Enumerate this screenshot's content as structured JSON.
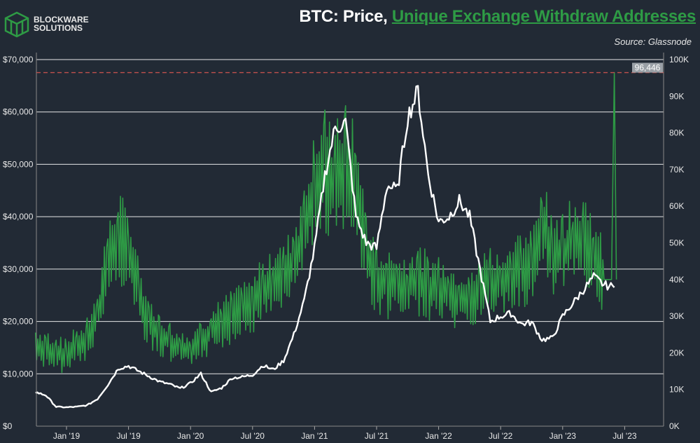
{
  "brand": {
    "line1": "BLOCKWARE",
    "line2": "SOLUTIONS"
  },
  "title_part1": "BTC: Price, ",
  "title_part2": "Unique Exchange Withdraw Addresses",
  "source": "Source: Glassnode",
  "colors": {
    "background": "#222a35",
    "price": "#ffffff",
    "addresses": "#2e9b45",
    "grid": "#e6e6e6",
    "refline": "#c0504d",
    "label_bg": "#9aa0a6"
  },
  "chart_data": {
    "type": "line",
    "title": "BTC: Price, Unique Exchange Withdraw Addresses",
    "x_ticks": [
      "Jan '19",
      "Jul '19",
      "Jan '20",
      "Jul '20",
      "Jan '21",
      "Jul '21",
      "Jan '22",
      "Jul '22",
      "Jan '23",
      "Jul '23"
    ],
    "x_range": [
      "2018-10",
      "2023-07"
    ],
    "y_left": {
      "ticks": [
        "$0",
        "$10,000",
        "$20,000",
        "$30,000",
        "$40,000",
        "$50,000",
        "$60,000",
        "$70,000"
      ],
      "range": [
        0,
        70000
      ]
    },
    "y_right": {
      "ticks": [
        "0K",
        "10K",
        "20K",
        "30K",
        "40K",
        "50K",
        "60K",
        "70K",
        "80K",
        "90K",
        "100K"
      ],
      "range": [
        0,
        100000
      ]
    },
    "reference_line": {
      "value": 96446,
      "label": "96,446",
      "axis": "right"
    },
    "grid": true,
    "series": [
      {
        "axis": "left",
        "style": "white",
        "points": [
          [
            "2018-10",
            6500
          ],
          [
            "2018-11",
            5900
          ],
          [
            "2018-12",
            3700
          ],
          [
            "2019-01",
            3600
          ],
          [
            "2019-02",
            3700
          ],
          [
            "2019-03",
            4000
          ],
          [
            "2019-04",
            5200
          ],
          [
            "2019-05",
            7900
          ],
          [
            "2019-06",
            11000
          ],
          [
            "2019-07",
            11500
          ],
          [
            "2019-08",
            10500
          ],
          [
            "2019-09",
            9500
          ],
          [
            "2019-10",
            8500
          ],
          [
            "2019-11",
            8000
          ],
          [
            "2019-12",
            7200
          ],
          [
            "2020-01",
            8200
          ],
          [
            "2020-02",
            10000
          ],
          [
            "2020-03",
            6500
          ],
          [
            "2020-04",
            7300
          ],
          [
            "2020-05",
            9200
          ],
          [
            "2020-06",
            9400
          ],
          [
            "2020-07",
            9800
          ],
          [
            "2020-08",
            11600
          ],
          [
            "2020-09",
            10800
          ],
          [
            "2020-10",
            12500
          ],
          [
            "2020-11",
            17500
          ],
          [
            "2020-12",
            24000
          ],
          [
            "2021-01",
            34000
          ],
          [
            "2021-02",
            48000
          ],
          [
            "2021-03",
            57000
          ],
          [
            "2021-04",
            58000
          ],
          [
            "2021-05",
            40000
          ],
          [
            "2021-06",
            35000
          ],
          [
            "2021-07",
            34000
          ],
          [
            "2021-08",
            46000
          ],
          [
            "2021-09",
            45000
          ],
          [
            "2021-10",
            59000
          ],
          [
            "2021-11",
            64000
          ],
          [
            "2021-12",
            48000
          ],
          [
            "2022-01",
            39000
          ],
          [
            "2022-02",
            40000
          ],
          [
            "2022-03",
            43000
          ],
          [
            "2022-04",
            40000
          ],
          [
            "2022-05",
            30000
          ],
          [
            "2022-06",
            20000
          ],
          [
            "2022-07",
            21000
          ],
          [
            "2022-08",
            21500
          ],
          [
            "2022-09",
            19500
          ],
          [
            "2022-10",
            19800
          ],
          [
            "2022-11",
            16500
          ],
          [
            "2022-12",
            16800
          ],
          [
            "2023-01",
            21000
          ],
          [
            "2023-02",
            23500
          ],
          [
            "2023-03",
            26000
          ],
          [
            "2023-04",
            28500
          ],
          [
            "2023-05",
            27000
          ],
          [
            "2023-06",
            26500
          ]
        ]
      },
      {
        "axis": "right",
        "style": "green",
        "points": [
          [
            "2018-10",
            22000
          ],
          [
            "2018-11",
            21000
          ],
          [
            "2018-12",
            20000
          ],
          [
            "2019-01",
            19000
          ],
          [
            "2019-02",
            22000
          ],
          [
            "2019-03",
            24000
          ],
          [
            "2019-04",
            30000
          ],
          [
            "2019-05",
            44000
          ],
          [
            "2019-06",
            52000
          ],
          [
            "2019-07",
            48000
          ],
          [
            "2019-08",
            36000
          ],
          [
            "2019-09",
            28000
          ],
          [
            "2019-10",
            25000
          ],
          [
            "2019-11",
            23000
          ],
          [
            "2019-12",
            21000
          ],
          [
            "2020-01",
            20000
          ],
          [
            "2020-02",
            23000
          ],
          [
            "2020-03",
            26000
          ],
          [
            "2020-04",
            28000
          ],
          [
            "2020-05",
            30000
          ],
          [
            "2020-06",
            31000
          ],
          [
            "2020-07",
            33000
          ],
          [
            "2020-08",
            37000
          ],
          [
            "2020-09",
            38000
          ],
          [
            "2020-10",
            40000
          ],
          [
            "2020-11",
            45000
          ],
          [
            "2020-12",
            52000
          ],
          [
            "2021-01",
            65000
          ],
          [
            "2021-02",
            70000
          ],
          [
            "2021-03",
            66000
          ],
          [
            "2021-04",
            72000
          ],
          [
            "2021-05",
            65000
          ],
          [
            "2021-06",
            48000
          ],
          [
            "2021-07",
            40000
          ],
          [
            "2021-08",
            39000
          ],
          [
            "2021-09",
            38000
          ],
          [
            "2021-10",
            38000
          ],
          [
            "2021-11",
            40000
          ],
          [
            "2021-12",
            38000
          ],
          [
            "2022-01",
            37000
          ],
          [
            "2022-02",
            36000
          ],
          [
            "2022-03",
            35000
          ],
          [
            "2022-04",
            33000
          ],
          [
            "2022-05",
            37000
          ],
          [
            "2022-06",
            40000
          ],
          [
            "2022-07",
            38000
          ],
          [
            "2022-08",
            41000
          ],
          [
            "2022-09",
            42000
          ],
          [
            "2022-10",
            44000
          ],
          [
            "2022-11",
            56000
          ],
          [
            "2022-12",
            45000
          ],
          [
            "2023-01",
            47000
          ],
          [
            "2023-02",
            50000
          ],
          [
            "2023-03",
            52000
          ],
          [
            "2023-04",
            47000
          ],
          [
            "2023-05",
            40000
          ],
          [
            "2023-06",
            96446
          ]
        ]
      }
    ]
  }
}
